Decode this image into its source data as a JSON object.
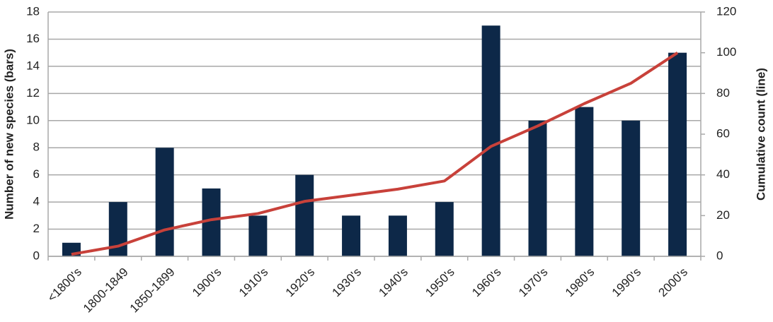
{
  "chart_data": {
    "type": "bar",
    "categories": [
      "<1800's",
      "1800-1849",
      "1850-1899",
      "1900's",
      "1910's",
      "1920's",
      "1930's",
      "1940's",
      "1950's",
      "1960's",
      "1970's",
      "1980's",
      "1990's",
      "2000's"
    ],
    "y_label": "Number of new species (bars)",
    "y2_label": "Cumulative count (line)",
    "series": [
      {
        "type": "bar",
        "color": "#0d2848",
        "values": [
          1,
          4,
          8,
          5,
          3,
          6,
          3,
          3,
          4,
          17,
          10,
          11,
          10,
          15
        ]
      },
      {
        "type": "line",
        "axis": "y2",
        "color": "#c8413a",
        "values": [
          1,
          5,
          13,
          18,
          21,
          27,
          30,
          33,
          37,
          54,
          64,
          75,
          85,
          100
        ]
      }
    ],
    "ylim": [
      0,
      18
    ],
    "yticks": [
      0,
      2,
      4,
      6,
      8,
      10,
      12,
      14,
      16,
      18
    ],
    "y2lim": [
      0,
      120
    ],
    "y2ticks": [
      0,
      20,
      40,
      60,
      80,
      100,
      120
    ],
    "grid": true
  }
}
